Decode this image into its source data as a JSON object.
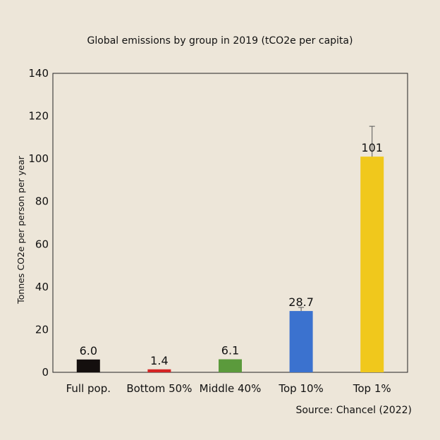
{
  "chart_data": {
    "type": "bar",
    "title": "Global emissions by group in 2019 (tCO2e per capita)",
    "xlabel": "",
    "ylabel": "Tonnes CO2e per person per year",
    "ylim": [
      0,
      140
    ],
    "yticks": [
      0,
      20,
      40,
      60,
      80,
      100,
      120,
      140
    ],
    "grid": false,
    "categories": [
      "Full pop.",
      "Bottom 50%",
      "Middle 40%",
      "Top 10%",
      "Top 1%"
    ],
    "values": [
      6.0,
      1.4,
      6.1,
      28.7,
      101
    ],
    "data_labels": [
      "6.0",
      "1.4",
      "6.1",
      "28.7",
      "101"
    ],
    "error_upper": [
      null,
      null,
      null,
      30.4,
      115.2
    ],
    "colors": [
      "#140f0e",
      "#d42424",
      "#5b9a3c",
      "#3b72cf",
      "#f0c81c"
    ],
    "source": "Source: Chancel (2022)"
  }
}
